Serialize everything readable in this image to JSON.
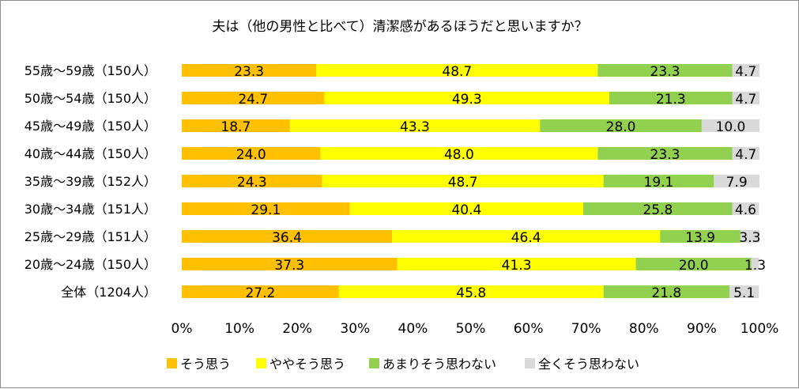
{
  "chart_data": {
    "type": "bar",
    "orientation": "horizontal",
    "stacked": "percent",
    "title": "夫は（他の男性と比べて）清潔感があるほうだと思いますか？",
    "categories": [
      "55歳～59歳（150人）",
      "50歳～54歳（150人）",
      "45歳～49歳（150人）",
      "40歳～44歳（150人）",
      "35歳～39歳（152人）",
      "30歳～34歳（151人）",
      "25歳～29歳（151人）",
      "20歳～24歳（150人）",
      "全体（1204人）"
    ],
    "series": [
      {
        "name": "そう思う",
        "color": "#FFC000",
        "values": [
          23.3,
          24.7,
          18.7,
          24.0,
          24.3,
          29.1,
          36.4,
          37.3,
          27.2
        ],
        "labels": [
          "23.3",
          "24.7",
          "18.7",
          "24.0",
          "24.3",
          "29.1",
          "36.4",
          "37.3",
          "27.2"
        ]
      },
      {
        "name": "ややそう思う",
        "color": "#FFFF00",
        "values": [
          48.7,
          49.3,
          43.3,
          48.0,
          48.7,
          40.4,
          46.4,
          41.3,
          45.8
        ],
        "labels": [
          "48.7",
          "49.3",
          "43.3",
          "48.0",
          "48.7",
          "40.4",
          "46.4",
          "41.3",
          "45.8"
        ]
      },
      {
        "name": "あまりそう思わない",
        "color": "#92D050",
        "values": [
          23.3,
          21.3,
          28.0,
          23.3,
          19.1,
          25.8,
          13.9,
          20.0,
          21.8
        ],
        "labels": [
          "23.3",
          "21.3",
          "28.0",
          "23.3",
          "19.1",
          "25.8",
          "13.9",
          "20.0",
          "21.8"
        ]
      },
      {
        "name": "全くそう思わない",
        "color": "#D9D9D9",
        "values": [
          4.7,
          4.7,
          10.0,
          4.7,
          7.9,
          4.6,
          3.3,
          1.3,
          5.1
        ],
        "labels": [
          "4.7",
          "4.7",
          "10.0",
          "4.7",
          "7.9",
          "4.6",
          "3.3",
          "1.3",
          "5.1"
        ]
      }
    ],
    "x_ticks": [
      "0%",
      "10%",
      "20%",
      "30%",
      "40%",
      "50%",
      "60%",
      "70%",
      "80%",
      "90%",
      "100%"
    ],
    "xlim": [
      0,
      100
    ],
    "grid": false,
    "legend_position": "bottom"
  }
}
